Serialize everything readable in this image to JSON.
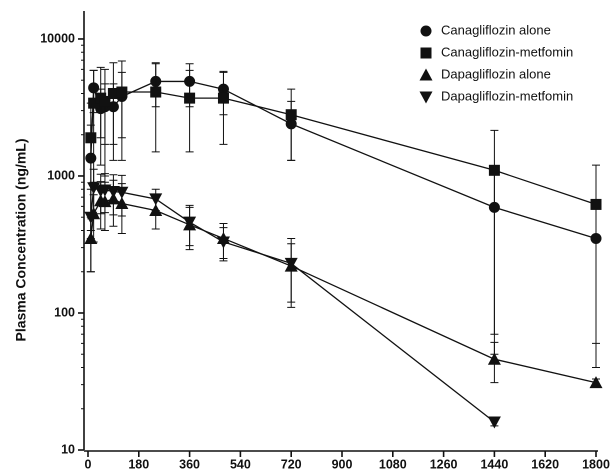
{
  "chart_data": {
    "type": "line",
    "y_label": "Plasma Concentration (ng/mL)",
    "x": [
      10,
      20,
      45,
      60,
      90,
      120,
      240,
      360,
      480,
      720,
      1440,
      1800
    ],
    "xlim": [
      0,
      1800
    ],
    "xticks": [
      0,
      180,
      360,
      540,
      720,
      900,
      1080,
      1260,
      1440,
      1620,
      1800
    ],
    "ylim": [
      10,
      16000
    ],
    "yticks": [
      10,
      100,
      1000,
      10000
    ],
    "log_y": true,
    "legend": "top-right",
    "series": [
      {
        "name": "Canagliflozin alone",
        "marker": "circle",
        "color": "#111111",
        "values": [
          1350,
          4400,
          3100,
          3200,
          3200,
          3800,
          4900,
          4900,
          4300,
          2400,
          590,
          350
        ],
        "errors": [
          1000,
          1500,
          1200,
          1500,
          1500,
          1900,
          1700,
          1700,
          1500,
          1100,
          520,
          290
        ]
      },
      {
        "name": "Canagliflozin-metfomin",
        "marker": "square",
        "color": "#111111",
        "values": [
          1900,
          3400,
          3700,
          3500,
          4000,
          4100,
          4100,
          3700,
          3700,
          2800,
          1100,
          620
        ],
        "errors": [
          1500,
          2500,
          2500,
          2500,
          2700,
          2800,
          2600,
          2200,
          2000,
          1500,
          1050,
          580
        ]
      },
      {
        "name": "Dapagliflozin alone",
        "marker": "triangle-up",
        "color": "#111111",
        "values": [
          350,
          530,
          660,
          650,
          680,
          630,
          560,
          440,
          350,
          220,
          46,
          31
        ],
        "errors": [
          150,
          200,
          250,
          250,
          250,
          250,
          150,
          150,
          100,
          100,
          15,
          2
        ]
      },
      {
        "name": "Dapagliflozin-metfomin",
        "marker": "triangle-down",
        "color": "#111111",
        "values": [
          500,
          820,
          780,
          790,
          770,
          760,
          680,
          460,
          330,
          230,
          16,
          null
        ],
        "errors": [
          300,
          300,
          250,
          250,
          250,
          250,
          120,
          150,
          90,
          120,
          1,
          null
        ]
      }
    ]
  }
}
